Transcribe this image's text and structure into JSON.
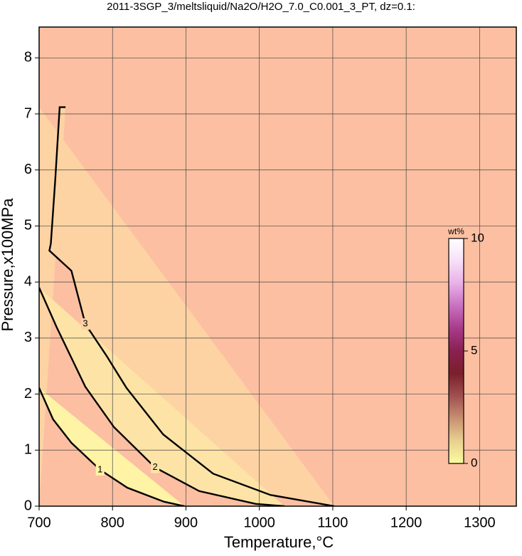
{
  "chart_data": {
    "type": "contour",
    "title": "2011-3SGP_3/meltsliquid/Na2O/H2O_7.0_C0.001_3_PT, dz=0.1:",
    "x_label": "Temperature,°C",
    "y_label": "Pressure,x100MPa",
    "xlim": [
      700,
      1350
    ],
    "xticks": [
      700,
      800,
      900,
      1000,
      1100,
      1200,
      1300
    ],
    "ylim": [
      0,
      8.55
    ],
    "yticks": [
      0,
      1,
      2,
      3,
      4,
      5,
      6,
      7,
      8
    ],
    "grid": true,
    "background": "#fcbfa2",
    "contours": [
      {
        "level": 3,
        "color": "#fdd3a4",
        "x": [
          736,
          728,
          722,
          716,
          714,
          744,
          763,
          792,
          819,
          869,
          937,
          1015,
          1102
        ],
        "y": [
          7.12,
          7.12,
          5.83,
          4.69,
          4.56,
          4.2,
          3.25,
          2.68,
          2.11,
          1.28,
          0.58,
          0.2,
          0
        ]
      },
      {
        "level": 2,
        "color": "#fde4a6",
        "x": [
          700,
          724,
          763,
          802,
          858,
          918,
          995,
          1034
        ],
        "y": [
          3.9,
          3.19,
          2.13,
          1.41,
          0.69,
          0.27,
          0.04,
          0
        ]
      },
      {
        "level": 1,
        "color": "#fff3a6",
        "x": [
          700,
          719,
          744,
          783,
          820,
          870,
          898
        ],
        "y": [
          2.11,
          1.55,
          1.13,
          0.65,
          0.33,
          0.08,
          0
        ]
      }
    ],
    "colorbar": {
      "label": "wt%",
      "lim": [
        0,
        10
      ],
      "ticks": [
        0,
        5,
        10
      ],
      "colors": [
        "#fbfba0",
        "#e8d090",
        "#c89070",
        "#a05050",
        "#7a1f2c",
        "#8a2050",
        "#a83a8a",
        "#c870c0",
        "#e8b0e8",
        "#f8e0f8",
        "#ffffff"
      ]
    }
  }
}
